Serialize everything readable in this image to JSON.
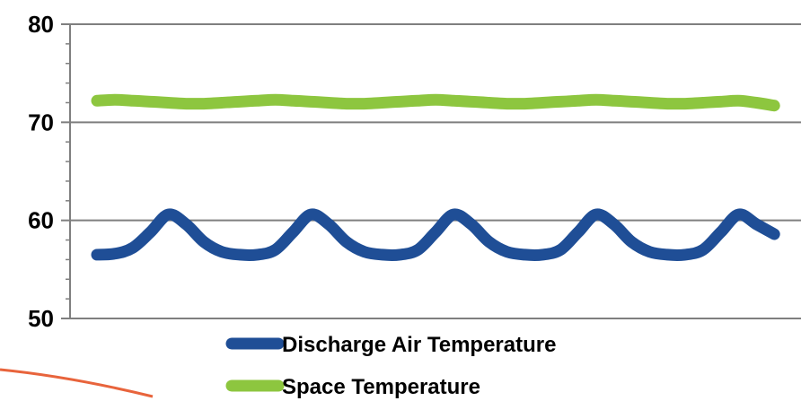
{
  "chart_data": {
    "type": "line",
    "title": "",
    "xlabel": "",
    "ylabel": "",
    "ylim": [
      50,
      80
    ],
    "yticks": [
      50,
      60,
      70,
      80
    ],
    "grid": true,
    "legend_position": "bottom",
    "x": [
      0,
      0.5,
      1,
      1.5,
      2,
      2.5,
      3,
      3.5,
      4,
      4.5,
      5,
      5.5,
      6,
      6.5,
      7,
      7.5,
      8,
      8.5,
      9,
      9.5,
      10,
      10.5,
      11,
      11.5,
      12,
      12.5,
      13,
      13.5,
      14,
      14.5,
      15,
      15.5,
      16,
      16.5,
      17,
      17.5,
      18,
      18.5,
      19
    ],
    "series": [
      {
        "name": "Discharge Air Temperature",
        "color": "#1f4e96",
        "values": [
          56.5,
          56.6,
          57.2,
          58.8,
          60.6,
          59.6,
          57.8,
          56.8,
          56.5,
          56.5,
          57.0,
          58.8,
          60.6,
          59.6,
          57.8,
          56.8,
          56.5,
          56.5,
          57.0,
          58.8,
          60.6,
          59.6,
          57.8,
          56.8,
          56.5,
          56.5,
          57.0,
          58.8,
          60.6,
          59.6,
          57.8,
          56.8,
          56.5,
          56.5,
          57.0,
          58.8,
          60.6,
          59.6,
          58.6
        ]
      },
      {
        "name": "Space Temperature",
        "color": "#8dc63f",
        "values": [
          72.2,
          72.3,
          72.2,
          72.1,
          72.0,
          71.9,
          71.9,
          72.0,
          72.1,
          72.2,
          72.3,
          72.2,
          72.1,
          72.0,
          71.9,
          71.9,
          72.0,
          72.1,
          72.2,
          72.3,
          72.2,
          72.1,
          72.0,
          71.9,
          71.9,
          72.0,
          72.1,
          72.2,
          72.3,
          72.2,
          72.1,
          72.0,
          71.9,
          71.9,
          72.0,
          72.1,
          72.2,
          72.0,
          71.7
        ]
      }
    ]
  },
  "colors": {
    "axis": "#7f7f7f",
    "decoration": "#e8643c"
  }
}
